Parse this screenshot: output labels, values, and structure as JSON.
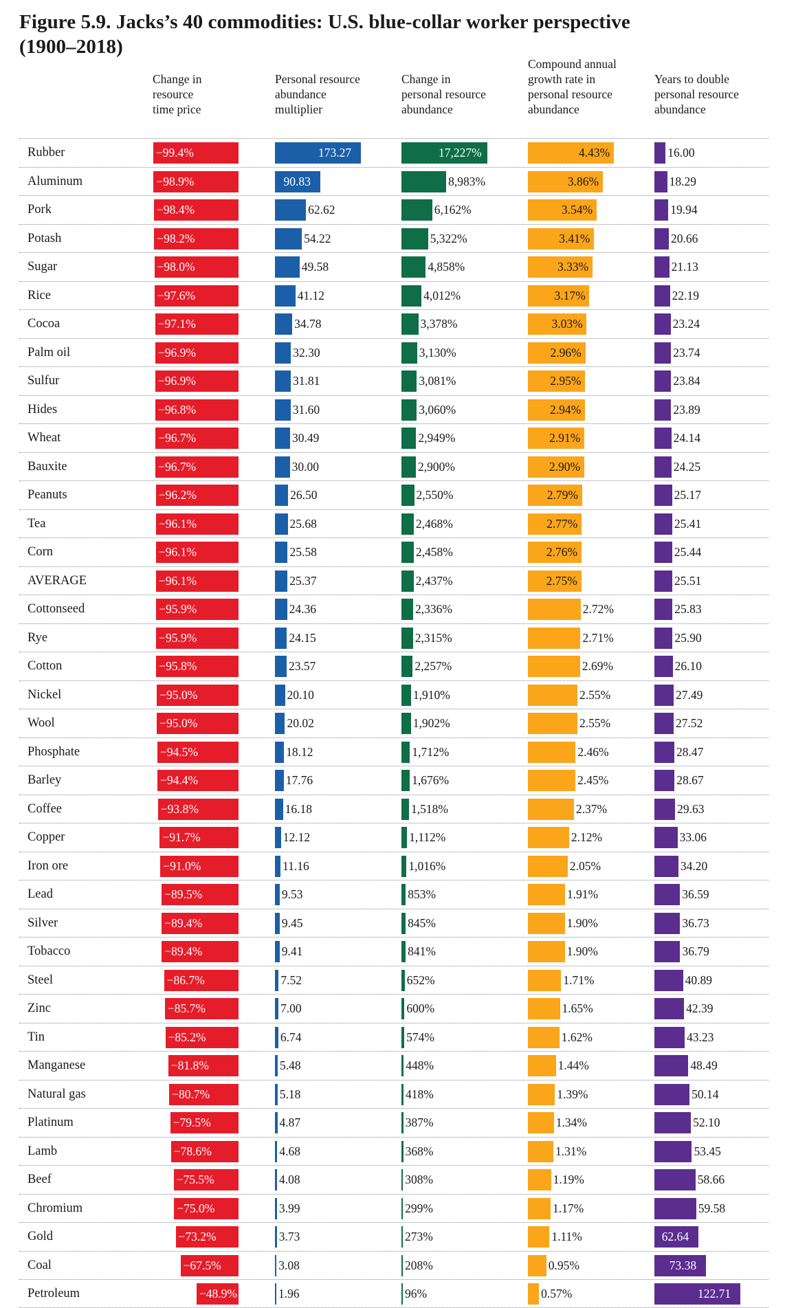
{
  "figure": {
    "title_line1": "Figure 5.9. Jacks’s 40 commodities: U.S. blue-collar worker perspective",
    "title_line2": "(1900–2018)"
  },
  "colors": {
    "time_price": "#e51d2a",
    "multiplier": "#1b5fa8",
    "change": "#0f6e47",
    "cagr": "#fba51a",
    "years": "#5b2d8e"
  },
  "columns": [
    {
      "key": "time_price",
      "lines": [
        "Change in",
        "resource",
        "time price"
      ]
    },
    {
      "key": "multiplier",
      "lines": [
        "Personal resource",
        "abundance",
        "multiplier"
      ]
    },
    {
      "key": "change",
      "lines": [
        "Change in",
        "personal resource",
        "abundance"
      ]
    },
    {
      "key": "cagr",
      "lines": [
        "Compound annual",
        "growth rate in",
        "personal resource",
        "abundance"
      ]
    },
    {
      "key": "years",
      "lines": [
        "Years to double",
        "personal resource",
        "abundance"
      ]
    }
  ],
  "chart_data": {
    "type": "table",
    "title": "Figure 5.9. Jacks’s 40 commodities: U.S. blue-collar worker perspective (1900–2018)",
    "rows": [
      {
        "name": "Rubber",
        "time_price": "−99.4%",
        "multiplier": "173.27",
        "change": "17,227%",
        "cagr": "4.43%",
        "years": "16.00"
      },
      {
        "name": "Aluminum",
        "time_price": "−98.9%",
        "multiplier": "90.83",
        "change": "8,983%",
        "cagr": "3.86%",
        "years": "18.29"
      },
      {
        "name": "Pork",
        "time_price": "−98.4%",
        "multiplier": "62.62",
        "change": "6,162%",
        "cagr": "3.54%",
        "years": "19.94"
      },
      {
        "name": "Potash",
        "time_price": "−98.2%",
        "multiplier": "54.22",
        "change": "5,322%",
        "cagr": "3.41%",
        "years": "20.66"
      },
      {
        "name": "Sugar",
        "time_price": "−98.0%",
        "multiplier": "49.58",
        "change": "4,858%",
        "cagr": "3.33%",
        "years": "21.13"
      },
      {
        "name": "Rice",
        "time_price": "−97.6%",
        "multiplier": "41.12",
        "change": "4,012%",
        "cagr": "3.17%",
        "years": "22.19"
      },
      {
        "name": "Cocoa",
        "time_price": "−97.1%",
        "multiplier": "34.78",
        "change": "3,378%",
        "cagr": "3.03%",
        "years": "23.24"
      },
      {
        "name": "Palm oil",
        "time_price": "−96.9%",
        "multiplier": "32.30",
        "change": "3,130%",
        "cagr": "2.96%",
        "years": "23.74"
      },
      {
        "name": "Sulfur",
        "time_price": "−96.9%",
        "multiplier": "31.81",
        "change": "3,081%",
        "cagr": "2.95%",
        "years": "23.84"
      },
      {
        "name": "Hides",
        "time_price": "−96.8%",
        "multiplier": "31.60",
        "change": "3,060%",
        "cagr": "2.94%",
        "years": "23.89"
      },
      {
        "name": "Wheat",
        "time_price": "−96.7%",
        "multiplier": "30.49",
        "change": "2,949%",
        "cagr": "2.91%",
        "years": "24.14"
      },
      {
        "name": "Bauxite",
        "time_price": "−96.7%",
        "multiplier": "30.00",
        "change": "2,900%",
        "cagr": "2.90%",
        "years": "24.25"
      },
      {
        "name": "Peanuts",
        "time_price": "−96.2%",
        "multiplier": "26.50",
        "change": "2,550%",
        "cagr": "2.79%",
        "years": "25.17"
      },
      {
        "name": "Tea",
        "time_price": "−96.1%",
        "multiplier": "25.68",
        "change": "2,468%",
        "cagr": "2.77%",
        "years": "25.41"
      },
      {
        "name": "Corn",
        "time_price": "−96.1%",
        "multiplier": "25.58",
        "change": "2,458%",
        "cagr": "2.76%",
        "years": "25.44"
      },
      {
        "name": "AVERAGE",
        "time_price": "−96.1%",
        "multiplier": "25.37",
        "change": "2,437%",
        "cagr": "2.75%",
        "years": "25.51"
      },
      {
        "name": "Cottonseed",
        "time_price": "−95.9%",
        "multiplier": "24.36",
        "change": "2,336%",
        "cagr": "2.72%",
        "years": "25.83"
      },
      {
        "name": "Rye",
        "time_price": "−95.9%",
        "multiplier": "24.15",
        "change": "2,315%",
        "cagr": "2.71%",
        "years": "25.90"
      },
      {
        "name": "Cotton",
        "time_price": "−95.8%",
        "multiplier": "23.57",
        "change": "2,257%",
        "cagr": "2.69%",
        "years": "26.10"
      },
      {
        "name": "Nickel",
        "time_price": "−95.0%",
        "multiplier": "20.10",
        "change": "1,910%",
        "cagr": "2.55%",
        "years": "27.49"
      },
      {
        "name": "Wool",
        "time_price": "−95.0%",
        "multiplier": "20.02",
        "change": "1,902%",
        "cagr": "2.55%",
        "years": "27.52"
      },
      {
        "name": "Phosphate",
        "time_price": "−94.5%",
        "multiplier": "18.12",
        "change": "1,712%",
        "cagr": "2.46%",
        "years": "28.47"
      },
      {
        "name": "Barley",
        "time_price": "−94.4%",
        "multiplier": "17.76",
        "change": "1,676%",
        "cagr": "2.45%",
        "years": "28.67"
      },
      {
        "name": "Coffee",
        "time_price": "−93.8%",
        "multiplier": "16.18",
        "change": "1,518%",
        "cagr": "2.37%",
        "years": "29.63"
      },
      {
        "name": "Copper",
        "time_price": "−91.7%",
        "multiplier": "12.12",
        "change": "1,112%",
        "cagr": "2.12%",
        "years": "33.06"
      },
      {
        "name": "Iron ore",
        "time_price": "−91.0%",
        "multiplier": "11.16",
        "change": "1,016%",
        "cagr": "2.05%",
        "years": "34.20"
      },
      {
        "name": "Lead",
        "time_price": "−89.5%",
        "multiplier": "9.53",
        "change": "853%",
        "cagr": "1.91%",
        "years": "36.59"
      },
      {
        "name": "Silver",
        "time_price": "−89.4%",
        "multiplier": "9.45",
        "change": "845%",
        "cagr": "1.90%",
        "years": "36.73"
      },
      {
        "name": "Tobacco",
        "time_price": "−89.4%",
        "multiplier": "9.41",
        "change": "841%",
        "cagr": "1.90%",
        "years": "36.79"
      },
      {
        "name": "Steel",
        "time_price": "−86.7%",
        "multiplier": "7.52",
        "change": "652%",
        "cagr": "1.71%",
        "years": "40.89"
      },
      {
        "name": "Zinc",
        "time_price": "−85.7%",
        "multiplier": "7.00",
        "change": "600%",
        "cagr": "1.65%",
        "years": "42.39"
      },
      {
        "name": "Tin",
        "time_price": "−85.2%",
        "multiplier": "6.74",
        "change": "574%",
        "cagr": "1.62%",
        "years": "43.23"
      },
      {
        "name": "Manganese",
        "time_price": "−81.8%",
        "multiplier": "5.48",
        "change": "448%",
        "cagr": "1.44%",
        "years": "48.49"
      },
      {
        "name": "Natural gas",
        "time_price": "−80.7%",
        "multiplier": "5.18",
        "change": "418%",
        "cagr": "1.39%",
        "years": "50.14"
      },
      {
        "name": "Platinum",
        "time_price": "−79.5%",
        "multiplier": "4.87",
        "change": "387%",
        "cagr": "1.34%",
        "years": "52.10"
      },
      {
        "name": "Lamb",
        "time_price": "−78.6%",
        "multiplier": "4.68",
        "change": "368%",
        "cagr": "1.31%",
        "years": "53.45"
      },
      {
        "name": "Beef",
        "time_price": "−75.5%",
        "multiplier": "4.08",
        "change": "308%",
        "cagr": "1.19%",
        "years": "58.66"
      },
      {
        "name": "Chromium",
        "time_price": "−75.0%",
        "multiplier": "3.99",
        "change": "299%",
        "cagr": "1.17%",
        "years": "59.58"
      },
      {
        "name": "Gold",
        "time_price": "−73.2%",
        "multiplier": "3.73",
        "change": "273%",
        "cagr": "1.11%",
        "years": "62.64"
      },
      {
        "name": "Coal",
        "time_price": "−67.5%",
        "multiplier": "3.08",
        "change": "208%",
        "cagr": "0.95%",
        "years": "73.38"
      },
      {
        "name": "Petroleum",
        "time_price": "−48.9%",
        "multiplier": "1.96",
        "change": "96%",
        "cagr": "0.57%",
        "years": "122.71"
      }
    ]
  }
}
